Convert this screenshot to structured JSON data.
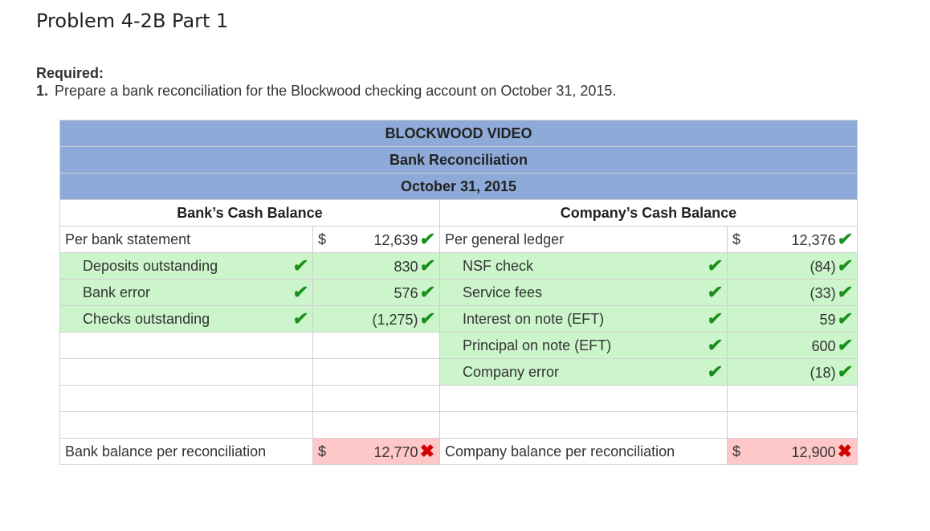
{
  "page_title": "Problem 4-2B Part 1",
  "required_label": "Required:",
  "question": {
    "number": "1.",
    "text": "Prepare a bank reconciliation for the Blockwood checking account on October 31, 2015."
  },
  "recon": {
    "company": "BLOCKWOOD VIDEO",
    "title": "Bank Reconciliation",
    "date": "October 31, 2015",
    "bank_header": "Bank’s Cash Balance",
    "company_header": "Company’s Cash Balance",
    "currency": "$",
    "check_glyph": "✔",
    "x_glyph": "✖",
    "bank": {
      "start_label": "Per bank statement",
      "start_value": "12,639",
      "rows": [
        {
          "label": "Deposits outstanding",
          "value": "830"
        },
        {
          "label": "Bank error",
          "value": "576"
        },
        {
          "label": "Checks outstanding",
          "value": "(1,275)"
        }
      ],
      "total_label": "Bank balance per reconciliation",
      "total_value": "12,770"
    },
    "company_side": {
      "start_label": "Per general ledger",
      "start_value": "12,376",
      "rows": [
        {
          "label": "NSF check",
          "value": "(84)"
        },
        {
          "label": "Service fees",
          "value": "(33)"
        },
        {
          "label": "Interest on note (EFT)",
          "value": "59"
        },
        {
          "label": "Principal on note (EFT)",
          "value": "600"
        },
        {
          "label": "Company error",
          "value": "(18)"
        }
      ],
      "total_label": "Company balance per reconciliation",
      "total_value": "12,900"
    }
  }
}
